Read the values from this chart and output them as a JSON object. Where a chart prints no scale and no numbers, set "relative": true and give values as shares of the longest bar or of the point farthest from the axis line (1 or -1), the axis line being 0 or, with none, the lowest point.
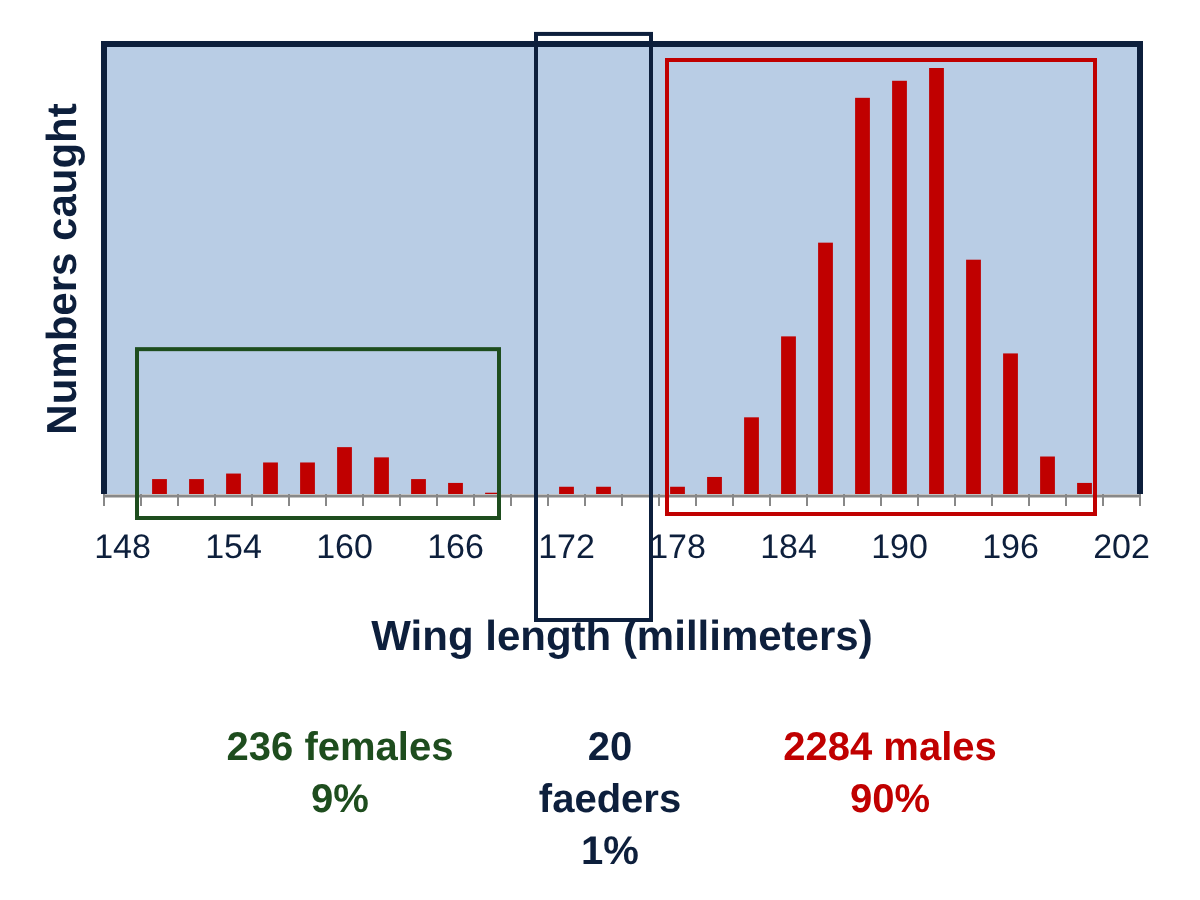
{
  "chart_data": {
    "type": "bar",
    "xlabel": "Wing length (millimeters)",
    "ylabel": "Numbers caught",
    "relative": true,
    "color": "#c00000",
    "categories": [
      "148",
      null,
      null,
      "154",
      null,
      null,
      "160",
      null,
      null,
      "166",
      null,
      null,
      "172",
      null,
      null,
      "178",
      null,
      null,
      "184",
      null,
      null,
      "190",
      null,
      null,
      "196",
      null,
      null,
      "202"
    ],
    "values": [
      0,
      0.035,
      0.035,
      0.048,
      0.074,
      0.074,
      0.11,
      0.086,
      0.035,
      0.026,
      0.003,
      0,
      0.017,
      0.017,
      0,
      0.017,
      0.04,
      0.18,
      0.37,
      0.59,
      0.93,
      0.97,
      1,
      0.55,
      0.33,
      0.088,
      0.026,
      0
    ],
    "annotations": [
      "236 females\n9%",
      "20\nfaeders\n1%",
      "2284 males\n90%"
    ]
  }
}
